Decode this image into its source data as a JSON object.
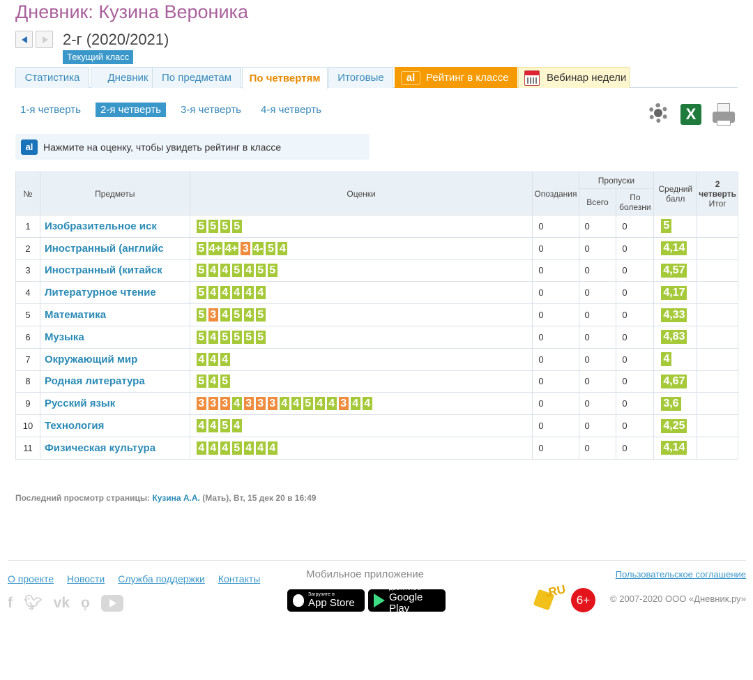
{
  "page": {
    "title": "Дневник: Кузина Вероника",
    "year": "2-г (2020/2021)",
    "current_class_badge": "Текущий класс"
  },
  "tabs": [
    {
      "label": "Статистика",
      "active": false
    },
    {
      "label": "Дневник",
      "active": false
    },
    {
      "label": "По предметам",
      "active": false
    },
    {
      "label": "По четвертям",
      "active": true
    },
    {
      "label": "Итоговые",
      "active": false
    },
    {
      "label": "Рейтинг в классе",
      "style": "rating"
    },
    {
      "label": "Вебинар недели",
      "style": "webinar"
    }
  ],
  "quarters": [
    {
      "label": "1-я четверть",
      "active": false
    },
    {
      "label": "2-я четверть",
      "active": true
    },
    {
      "label": "3-я четверть",
      "active": false
    },
    {
      "label": "4-я четверть",
      "active": false
    }
  ],
  "hint": "Нажмите на оценку, чтобы увидеть рейтинг в классе",
  "logo_text": "al",
  "excel_letter": "X",
  "table": {
    "headers": {
      "num": "№",
      "subjects": "Предметы",
      "marks": "Оценки",
      "late": "Опоздания",
      "absences": "Пропуски",
      "total": "Всего",
      "sick": "По болезни",
      "avg": "Средний балл",
      "final_q": "2",
      "final_q2": "четверть",
      "final": "Итог"
    },
    "rows": [
      {
        "n": "1",
        "subject": "Изобразительное иск",
        "marks": [
          "5",
          "5",
          "5",
          "5"
        ],
        "late": "0",
        "total": "0",
        "sick": "0",
        "avg": "5"
      },
      {
        "n": "2",
        "subject": "Иностранный (английс",
        "marks": [
          "5",
          "4+",
          "4+",
          "3",
          "4-",
          "5",
          "4"
        ],
        "late": "0",
        "total": "0",
        "sick": "0",
        "avg": "4,14"
      },
      {
        "n": "3",
        "subject": "Иностранный (китайск",
        "marks": [
          "5",
          "4",
          "4",
          "5",
          "4",
          "5",
          "5"
        ],
        "late": "0",
        "total": "0",
        "sick": "0",
        "avg": "4,57"
      },
      {
        "n": "4",
        "subject": "Литературное чтение",
        "marks": [
          "5",
          "4",
          "4",
          "4",
          "4",
          "4"
        ],
        "late": "0",
        "total": "0",
        "sick": "0",
        "avg": "4,17"
      },
      {
        "n": "5",
        "subject": "Математика",
        "marks": [
          "5",
          "3",
          "4",
          "5",
          "4",
          "5"
        ],
        "late": "0",
        "total": "0",
        "sick": "0",
        "avg": "4,33"
      },
      {
        "n": "6",
        "subject": "Музыка",
        "marks": [
          "5",
          "4",
          "5",
          "5",
          "5",
          "5"
        ],
        "late": "0",
        "total": "0",
        "sick": "0",
        "avg": "4,83"
      },
      {
        "n": "7",
        "subject": "Окружающий мир",
        "marks": [
          "4",
          "4",
          "4"
        ],
        "late": "0",
        "total": "0",
        "sick": "0",
        "avg": "4"
      },
      {
        "n": "8",
        "subject": "Родная литература",
        "marks": [
          "5",
          "4",
          "5"
        ],
        "late": "0",
        "total": "0",
        "sick": "0",
        "avg": "4,67"
      },
      {
        "n": "9",
        "subject": "Русский язык",
        "marks": [
          "3",
          "3",
          "3",
          "4",
          "3",
          "3",
          "3",
          "4",
          "4",
          "5",
          "4",
          "4",
          "3",
          "4",
          "4"
        ],
        "late": "0",
        "total": "0",
        "sick": "0",
        "avg": "3,6"
      },
      {
        "n": "10",
        "subject": "Технология",
        "marks": [
          "4",
          "4",
          "5",
          "4"
        ],
        "late": "0",
        "total": "0",
        "sick": "0",
        "avg": "4,25"
      },
      {
        "n": "11",
        "subject": "Физическая культура",
        "marks": [
          "4",
          "4",
          "4",
          "5",
          "4",
          "4",
          "4"
        ],
        "late": "0",
        "total": "0",
        "sick": "0",
        "avg": "4,14"
      }
    ]
  },
  "last_view": {
    "prefix": "Последний просмотр страницы:",
    "who": "Кузина А.А.",
    "rest": "(Мать), Вт, 15 дек 20 в 16:49"
  },
  "footer": {
    "links": [
      "О проекте",
      "Новости",
      "Служба поддержки",
      "Контакты"
    ],
    "mobile_label": "Мобильное приложение",
    "appstore_small": "Загрузите в",
    "appstore_big": "App Store",
    "googleplay_small": "ДОСТУПНО В",
    "googleplay_big": "Google Play",
    "agreement": "Пользовательское соглашение",
    "ru_logo": ".RU",
    "age": "6+",
    "copyright": "© 2007-2020 ООО «Дневник.ру»",
    "social": [
      "f",
      "twitter",
      "vk",
      "ok",
      "youtube"
    ]
  },
  "colors": {
    "title": "#a9619c",
    "accent": "#3a97c9",
    "mark_good": "#a6c93a",
    "mark_low": "#f08c3e",
    "rating_tab": "#f59a00"
  }
}
